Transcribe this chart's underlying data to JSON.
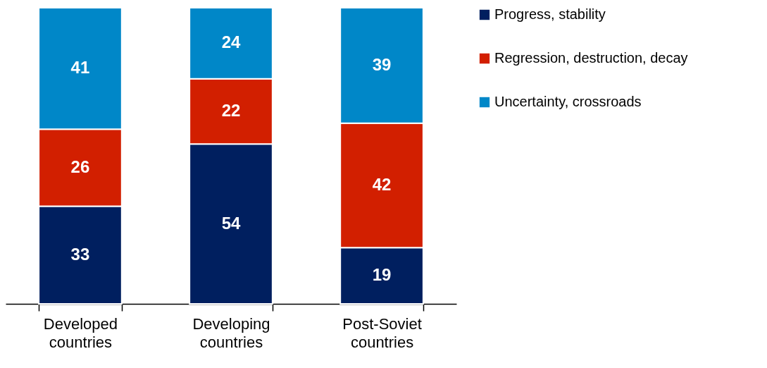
{
  "chart_data": {
    "type": "bar",
    "stacked": true,
    "data_labels": true,
    "legend": "right",
    "grid": false,
    "categories": [
      "Developed countries",
      "Developing countries",
      "Post-Soviet countries"
    ],
    "series": [
      {
        "name": "Progress, stability",
        "color": "#001f5f",
        "values": [
          33,
          54,
          19
        ]
      },
      {
        "name": "Regression, destruction, decay",
        "color": "#d21f00",
        "values": [
          26,
          22,
          42
        ]
      },
      {
        "name": "Uncertainty, crossroads",
        "color": "#0087c8",
        "values": [
          41,
          24,
          39
        ]
      }
    ]
  }
}
